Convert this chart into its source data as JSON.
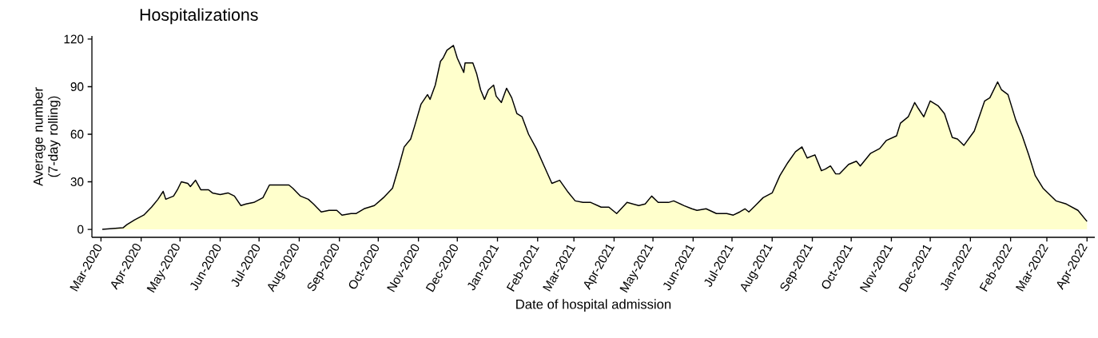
{
  "chart_data": {
    "type": "area",
    "title": "Hospitalizations",
    "xlabel": "Date of hospital admission",
    "ylabel": "Average number (7-day rolling)",
    "xlim": [
      "2020-02-23",
      "2022-04-07"
    ],
    "ylim": [
      -5,
      122
    ],
    "xticks": [
      {
        "value": "2020-03-01",
        "label": "Mar-2020"
      },
      {
        "value": "2020-04-01",
        "label": "Apr-2020"
      },
      {
        "value": "2020-05-01",
        "label": "May-2020"
      },
      {
        "value": "2020-06-01",
        "label": "Jun-2020"
      },
      {
        "value": "2020-07-01",
        "label": "Jul-2020"
      },
      {
        "value": "2020-08-01",
        "label": "Aug-2020"
      },
      {
        "value": "2020-09-01",
        "label": "Sep-2020"
      },
      {
        "value": "2020-10-01",
        "label": "Oct-2020"
      },
      {
        "value": "2020-11-01",
        "label": "Nov-2020"
      },
      {
        "value": "2020-12-01",
        "label": "Dec-2020"
      },
      {
        "value": "2021-01-01",
        "label": "Jan-2021"
      },
      {
        "value": "2021-02-01",
        "label": "Feb-2021"
      },
      {
        "value": "2021-03-01",
        "label": "Mar-2021"
      },
      {
        "value": "2021-04-01",
        "label": "Apr-2021"
      },
      {
        "value": "2021-05-01",
        "label": "May-2021"
      },
      {
        "value": "2021-06-01",
        "label": "Jun-2021"
      },
      {
        "value": "2021-07-01",
        "label": "Jul-2021"
      },
      {
        "value": "2021-08-01",
        "label": "Aug-2021"
      },
      {
        "value": "2021-09-01",
        "label": "Sep-2021"
      },
      {
        "value": "2021-10-01",
        "label": "Oct-2021"
      },
      {
        "value": "2021-11-01",
        "label": "Nov-2021"
      },
      {
        "value": "2021-12-01",
        "label": "Dec-2021"
      },
      {
        "value": "2022-01-01",
        "label": "Jan-2022"
      },
      {
        "value": "2022-02-01",
        "label": "Feb-2022"
      },
      {
        "value": "2022-03-01",
        "label": "Mar-2022"
      },
      {
        "value": "2022-04-01",
        "label": "Apr-2022"
      }
    ],
    "yticks": [
      0,
      30,
      60,
      90,
      120
    ],
    "series": [
      {
        "color": "#ffffcc",
        "x": [
          "2020-03-02",
          "2020-03-18",
          "2020-03-21",
          "2020-03-27",
          "2020-04-03",
          "2020-04-09",
          "2020-04-14",
          "2020-04-18",
          "2020-04-20",
          "2020-04-26",
          "2020-04-29",
          "2020-05-02",
          "2020-05-07",
          "2020-05-09",
          "2020-05-13",
          "2020-05-17",
          "2020-05-23",
          "2020-05-26",
          "2020-06-01",
          "2020-06-07",
          "2020-06-12",
          "2020-06-17",
          "2020-06-21",
          "2020-06-27",
          "2020-07-04",
          "2020-07-09",
          "2020-07-15",
          "2020-07-19",
          "2020-07-24",
          "2020-07-27",
          "2020-08-02",
          "2020-08-08",
          "2020-08-12",
          "2020-08-18",
          "2020-08-24",
          "2020-08-30",
          "2020-09-03",
          "2020-09-10",
          "2020-09-14",
          "2020-09-20",
          "2020-09-28",
          "2020-10-05",
          "2020-10-12",
          "2020-10-17",
          "2020-10-21",
          "2020-10-26",
          "2020-10-29",
          "2020-11-03",
          "2020-11-08",
          "2020-11-10",
          "2020-11-14",
          "2020-11-18",
          "2020-11-20",
          "2020-11-23",
          "2020-11-28",
          "2020-12-01",
          "2020-12-06",
          "2020-12-07",
          "2020-12-13",
          "2020-12-16",
          "2020-12-19",
          "2020-12-22",
          "2020-12-25",
          "2020-12-29",
          "2020-12-31",
          "2021-01-04",
          "2021-01-08",
          "2021-01-12",
          "2021-01-16",
          "2021-01-20",
          "2021-01-25",
          "2021-01-31",
          "2021-02-06",
          "2021-02-12",
          "2021-02-18",
          "2021-02-24",
          "2021-03-02",
          "2021-03-08",
          "2021-03-14",
          "2021-03-22",
          "2021-03-28",
          "2021-04-03",
          "2021-04-11",
          "2021-04-20",
          "2021-04-25",
          "2021-04-30",
          "2021-05-05",
          "2021-05-13",
          "2021-05-17",
          "2021-05-25",
          "2021-05-31",
          "2021-06-04",
          "2021-06-11",
          "2021-06-19",
          "2021-06-27",
          "2021-07-02",
          "2021-07-07",
          "2021-07-11",
          "2021-07-14",
          "2021-07-19",
          "2021-07-25",
          "2021-08-01",
          "2021-08-07",
          "2021-08-13",
          "2021-08-19",
          "2021-08-24",
          "2021-08-28",
          "2021-09-03",
          "2021-09-08",
          "2021-09-11",
          "2021-09-15",
          "2021-09-19",
          "2021-09-22",
          "2021-09-29",
          "2021-10-05",
          "2021-10-08",
          "2021-10-16",
          "2021-10-23",
          "2021-10-28",
          "2021-11-05",
          "2021-11-08",
          "2021-11-14",
          "2021-11-19",
          "2021-11-22",
          "2021-11-26",
          "2021-12-01",
          "2021-12-07",
          "2021-12-12",
          "2021-12-18",
          "2021-12-22",
          "2021-12-27",
          "2022-01-04",
          "2022-01-12",
          "2022-01-16",
          "2022-01-22",
          "2022-01-25",
          "2022-01-30",
          "2022-02-05",
          "2022-02-10",
          "2022-02-15",
          "2022-02-20",
          "2022-02-26",
          "2022-03-08",
          "2022-03-16",
          "2022-03-25",
          "2022-04-01"
        ],
        "values": [
          0,
          1,
          3,
          6,
          9,
          14,
          19,
          24,
          19,
          21,
          25,
          30,
          29,
          27,
          31,
          25,
          25,
          23,
          22,
          23,
          21,
          15,
          16,
          17,
          20,
          28,
          28,
          28,
          28,
          26,
          21,
          19,
          16,
          11,
          12,
          12,
          9,
          10,
          10,
          13,
          15,
          20,
          26,
          40,
          52,
          57,
          65,
          79,
          85,
          82,
          91,
          106,
          108,
          113,
          116,
          108,
          99,
          105,
          105,
          98,
          88,
          82,
          88,
          91,
          84,
          80,
          89,
          83,
          73,
          71,
          60,
          51,
          40,
          29,
          31,
          24,
          18,
          17,
          17,
          14,
          14,
          10,
          17,
          15,
          16,
          21,
          17,
          17,
          18,
          15,
          13,
          12,
          13,
          10,
          10,
          9,
          11,
          13,
          11,
          15,
          20,
          23,
          34,
          42,
          49,
          52,
          45,
          47,
          37,
          38,
          40,
          35,
          35,
          41,
          43,
          40,
          48,
          51,
          56,
          59,
          67,
          71,
          80,
          76,
          71,
          81,
          78,
          73,
          58,
          57,
          53,
          62,
          81,
          83,
          93,
          88,
          85,
          69,
          59,
          47,
          34,
          26,
          18,
          16,
          12,
          5
        ]
      }
    ]
  }
}
